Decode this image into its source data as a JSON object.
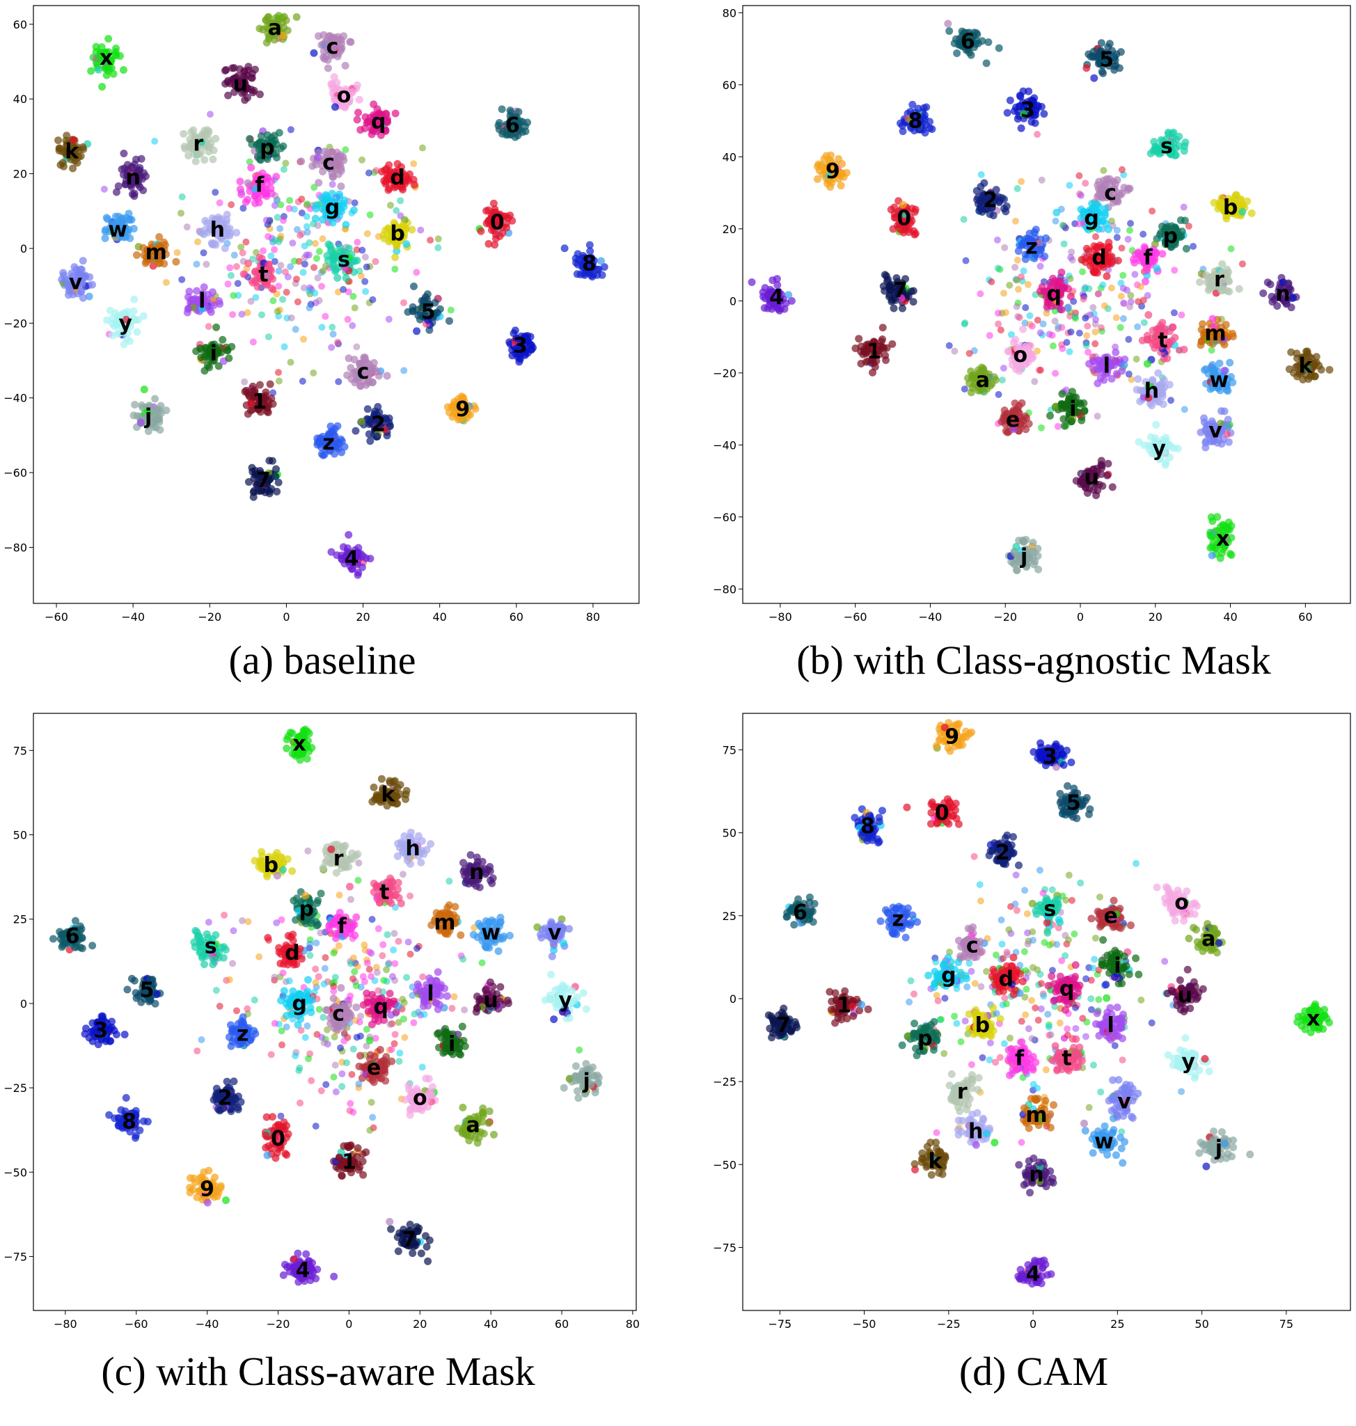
{
  "palette": {
    "0": "#e3122b",
    "1": "#7a0f22",
    "2": "#0f1f7a",
    "3": "#0a12c8",
    "4": "#6a1bd6",
    "5": "#0b4a6a",
    "6": "#0d5a6a",
    "7": "#0a1450",
    "8": "#1224d0",
    "9": "#f5a21a",
    "a": "#72a51c",
    "b": "#d8d20a",
    "c": "#b080b8",
    "d": "#e8122c",
    "e": "#b42f3a",
    "f": "#ff3ae6",
    "g": "#12d0f2",
    "h": "#a8a8f0",
    "i": "#0e6b12",
    "j": "#8aa8a2",
    "k": "#6b4a0a",
    "l": "#a24af0",
    "m": "#cc6a0a",
    "n": "#4a1a7a",
    "o": "#f5a8e2",
    "p": "#0b6e55",
    "q": "#e0128a",
    "r": "#b4c6b0",
    "s": "#1ad0a8",
    "t": "#f54a88",
    "u": "#5a0a4a",
    "v": "#7a82f2",
    "w": "#3a9af0",
    "x": "#12e012",
    "y": "#a8f2f2",
    "z": "#2a5af0"
  },
  "chart_data": [
    {
      "type": "scatter",
      "caption": "(a) baseline",
      "xlim": [
        -66,
        92
      ],
      "ylim": [
        -95,
        65
      ],
      "xticks": [
        -60,
        -40,
        -20,
        0,
        20,
        40,
        60,
        80
      ],
      "yticks": [
        60,
        40,
        20,
        0,
        -20,
        -40,
        -60,
        -80
      ],
      "xtick_labels": [
        "−60",
        "−40",
        "−20",
        "0",
        "20",
        "40",
        "60",
        "80"
      ],
      "ytick_labels": [
        "60",
        "40",
        "20",
        "0",
        "−20",
        "−40",
        "−60",
        "−80"
      ],
      "clusters": [
        {
          "label": "a",
          "x": -3,
          "y": 59
        },
        {
          "label": "c",
          "x": 12,
          "y": 54
        },
        {
          "label": "x",
          "x": -47,
          "y": 51
        },
        {
          "label": "u",
          "x": -12,
          "y": 44
        },
        {
          "label": "o",
          "x": 15,
          "y": 41
        },
        {
          "label": "q",
          "x": 24,
          "y": 34
        },
        {
          "label": "6",
          "x": 59,
          "y": 33
        },
        {
          "label": "r",
          "x": -23,
          "y": 28
        },
        {
          "label": "p",
          "x": -5,
          "y": 27
        },
        {
          "label": "k",
          "x": -56,
          "y": 26
        },
        {
          "label": "c",
          "x": 11,
          "y": 23
        },
        {
          "label": "d",
          "x": 29,
          "y": 19
        },
        {
          "label": "n",
          "x": -40,
          "y": 19
        },
        {
          "label": "f",
          "x": -7,
          "y": 17
        },
        {
          "label": "g",
          "x": 12,
          "y": 11
        },
        {
          "label": "0",
          "x": 55,
          "y": 7
        },
        {
          "label": "w",
          "x": -44,
          "y": 5
        },
        {
          "label": "h",
          "x": -18,
          "y": 5
        },
        {
          "label": "b",
          "x": 29,
          "y": 4
        },
        {
          "label": "m",
          "x": -34,
          "y": -1
        },
        {
          "label": "s",
          "x": 15,
          "y": -3
        },
        {
          "label": "8",
          "x": 79,
          "y": -4
        },
        {
          "label": "t",
          "x": -6,
          "y": -7
        },
        {
          "label": "v",
          "x": -55,
          "y": -9
        },
        {
          "label": "l",
          "x": -22,
          "y": -14
        },
        {
          "label": "5",
          "x": 37,
          "y": -17
        },
        {
          "label": "y",
          "x": -42,
          "y": -20
        },
        {
          "label": "3",
          "x": 61,
          "y": -26
        },
        {
          "label": "i",
          "x": -19,
          "y": -28
        },
        {
          "label": "c",
          "x": 20,
          "y": -33
        },
        {
          "label": "9",
          "x": 46,
          "y": -43
        },
        {
          "label": "1",
          "x": -7,
          "y": -41
        },
        {
          "label": "j",
          "x": -36,
          "y": -45
        },
        {
          "label": "2",
          "x": 24,
          "y": -47
        },
        {
          "label": "z",
          "x": 11,
          "y": -52
        },
        {
          "label": "7",
          "x": -6,
          "y": -62
        },
        {
          "label": "4",
          "x": 17,
          "y": -83
        }
      ]
    },
    {
      "type": "scatter",
      "caption": "(b) with Class-agnostic Mask",
      "xlim": [
        -90,
        72
      ],
      "ylim": [
        -84,
        82
      ],
      "xticks": [
        -80,
        -60,
        -40,
        -20,
        0,
        20,
        40,
        60
      ],
      "yticks": [
        80,
        60,
        40,
        20,
        0,
        -20,
        -40,
        -60,
        -80
      ],
      "xtick_labels": [
        "−80",
        "−60",
        "−40",
        "−20",
        "0",
        "20",
        "40",
        "60"
      ],
      "ytick_labels": [
        "80",
        "60",
        "40",
        "20",
        "0",
        "−20",
        "−40",
        "−60",
        "−80"
      ],
      "clusters": [
        {
          "label": "6",
          "x": -30,
          "y": 72
        },
        {
          "label": "5",
          "x": 7,
          "y": 67
        },
        {
          "label": "3",
          "x": -14,
          "y": 53
        },
        {
          "label": "8",
          "x": -44,
          "y": 50
        },
        {
          "label": "s",
          "x": 23,
          "y": 43
        },
        {
          "label": "9",
          "x": -66,
          "y": 36
        },
        {
          "label": "c",
          "x": 8,
          "y": 30
        },
        {
          "label": "b",
          "x": 40,
          "y": 26
        },
        {
          "label": "2",
          "x": -24,
          "y": 28
        },
        {
          "label": "g",
          "x": 3,
          "y": 23
        },
        {
          "label": "0",
          "x": -47,
          "y": 23
        },
        {
          "label": "p",
          "x": 24,
          "y": 18
        },
        {
          "label": "z",
          "x": -13,
          "y": 15
        },
        {
          "label": "d",
          "x": 5,
          "y": 12
        },
        {
          "label": "f",
          "x": 18,
          "y": 12
        },
        {
          "label": "r",
          "x": 37,
          "y": 6
        },
        {
          "label": "7",
          "x": -48,
          "y": 3
        },
        {
          "label": "4",
          "x": -81,
          "y": 1
        },
        {
          "label": "n",
          "x": 54,
          "y": 2
        },
        {
          "label": "q",
          "x": -7,
          "y": 2
        },
        {
          "label": "m",
          "x": 36,
          "y": -9
        },
        {
          "label": "t",
          "x": 22,
          "y": -11
        },
        {
          "label": "1",
          "x": -55,
          "y": -14
        },
        {
          "label": "o",
          "x": -16,
          "y": -15
        },
        {
          "label": "l",
          "x": 7,
          "y": -18
        },
        {
          "label": "k",
          "x": 60,
          "y": -18
        },
        {
          "label": "a",
          "x": -26,
          "y": -22
        },
        {
          "label": "w",
          "x": 37,
          "y": -22
        },
        {
          "label": "h",
          "x": 19,
          "y": -25
        },
        {
          "label": "i",
          "x": -2,
          "y": -30
        },
        {
          "label": "e",
          "x": -18,
          "y": -33
        },
        {
          "label": "v",
          "x": 36,
          "y": -36
        },
        {
          "label": "y",
          "x": 21,
          "y": -41
        },
        {
          "label": "u",
          "x": 3,
          "y": -49
        },
        {
          "label": "x",
          "x": 38,
          "y": -66
        },
        {
          "label": "j",
          "x": -15,
          "y": -71
        }
      ]
    },
    {
      "type": "scatter",
      "caption": "(c) with Class-aware Mask",
      "xlim": [
        -89,
        81
      ],
      "ylim": [
        -91,
        86
      ],
      "xticks": [
        -80,
        -60,
        -40,
        -20,
        0,
        20,
        40,
        60,
        80
      ],
      "yticks": [
        75,
        50,
        25,
        0,
        -25,
        -50,
        -75
      ],
      "xtick_labels": [
        "−80",
        "−60",
        "−40",
        "−20",
        "0",
        "20",
        "40",
        "60",
        "80"
      ],
      "ytick_labels": [
        "75",
        "50",
        "25",
        "0",
        "−25",
        "−50",
        "−75"
      ],
      "clusters": [
        {
          "label": "x",
          "x": -14,
          "y": 77
        },
        {
          "label": "k",
          "x": 11,
          "y": 62
        },
        {
          "label": "h",
          "x": 18,
          "y": 46
        },
        {
          "label": "r",
          "x": -3,
          "y": 43
        },
        {
          "label": "b",
          "x": -22,
          "y": 41
        },
        {
          "label": "n",
          "x": 36,
          "y": 39
        },
        {
          "label": "t",
          "x": 10,
          "y": 33
        },
        {
          "label": "p",
          "x": -12,
          "y": 28
        },
        {
          "label": "m",
          "x": 27,
          "y": 24
        },
        {
          "label": "f",
          "x": -2,
          "y": 23
        },
        {
          "label": "w",
          "x": 40,
          "y": 21
        },
        {
          "label": "v",
          "x": 58,
          "y": 21
        },
        {
          "label": "6",
          "x": -78,
          "y": 20
        },
        {
          "label": "s",
          "x": -39,
          "y": 17
        },
        {
          "label": "d",
          "x": -16,
          "y": 15
        },
        {
          "label": "5",
          "x": -57,
          "y": 4
        },
        {
          "label": "l",
          "x": 23,
          "y": 3
        },
        {
          "label": "u",
          "x": 40,
          "y": 1
        },
        {
          "label": "y",
          "x": 61,
          "y": 1
        },
        {
          "label": "g",
          "x": -14,
          "y": 0
        },
        {
          "label": "c",
          "x": -3,
          "y": -3
        },
        {
          "label": "q",
          "x": 9,
          "y": -1
        },
        {
          "label": "3",
          "x": -70,
          "y": -8
        },
        {
          "label": "z",
          "x": -30,
          "y": -9
        },
        {
          "label": "i",
          "x": 29,
          "y": -12
        },
        {
          "label": "e",
          "x": 7,
          "y": -19
        },
        {
          "label": "j",
          "x": 67,
          "y": -23
        },
        {
          "label": "2",
          "x": -35,
          "y": -28
        },
        {
          "label": "o",
          "x": 20,
          "y": -28
        },
        {
          "label": "8",
          "x": -62,
          "y": -35
        },
        {
          "label": "a",
          "x": 35,
          "y": -36
        },
        {
          "label": "0",
          "x": -20,
          "y": -40
        },
        {
          "label": "1",
          "x": 0,
          "y": -47
        },
        {
          "label": "9",
          "x": -40,
          "y": -55
        },
        {
          "label": "7",
          "x": 17,
          "y": -70
        },
        {
          "label": "4",
          "x": -13,
          "y": -79
        }
      ]
    },
    {
      "type": "scatter",
      "caption": "(d) CAM",
      "xlim": [
        -86,
        94
      ],
      "ylim": [
        -94,
        86
      ],
      "xticks": [
        -75,
        -50,
        -25,
        0,
        25,
        50,
        75
      ],
      "yticks": [
        75,
        50,
        25,
        0,
        -25,
        -50,
        -75
      ],
      "xtick_labels": [
        "−75",
        "−50",
        "−25",
        "0",
        "25",
        "50",
        "75"
      ],
      "ytick_labels": [
        "75",
        "50",
        "25",
        "0",
        "−25",
        "−50",
        "−75"
      ],
      "clusters": [
        {
          "label": "9",
          "x": -24,
          "y": 79
        },
        {
          "label": "3",
          "x": 5,
          "y": 73
        },
        {
          "label": "5",
          "x": 12,
          "y": 59
        },
        {
          "label": "0",
          "x": -27,
          "y": 56
        },
        {
          "label": "8",
          "x": -49,
          "y": 52
        },
        {
          "label": "2",
          "x": -9,
          "y": 44
        },
        {
          "label": "6",
          "x": -69,
          "y": 26
        },
        {
          "label": "z",
          "x": -40,
          "y": 24
        },
        {
          "label": "s",
          "x": 5,
          "y": 27
        },
        {
          "label": "e",
          "x": 23,
          "y": 25
        },
        {
          "label": "o",
          "x": 44,
          "y": 29
        },
        {
          "label": "c",
          "x": -18,
          "y": 16
        },
        {
          "label": "a",
          "x": 52,
          "y": 18
        },
        {
          "label": "d",
          "x": -8,
          "y": 6
        },
        {
          "label": "g",
          "x": -25,
          "y": 7
        },
        {
          "label": "i",
          "x": 25,
          "y": 10
        },
        {
          "label": "q",
          "x": 10,
          "y": 3
        },
        {
          "label": "u",
          "x": 45,
          "y": 1
        },
        {
          "label": "1",
          "x": -56,
          "y": -2
        },
        {
          "label": "x",
          "x": 83,
          "y": -6
        },
        {
          "label": "7",
          "x": -74,
          "y": -8
        },
        {
          "label": "b",
          "x": -15,
          "y": -8
        },
        {
          "label": "l",
          "x": 23,
          "y": -8
        },
        {
          "label": "p",
          "x": -32,
          "y": -12
        },
        {
          "label": "f",
          "x": -4,
          "y": -18
        },
        {
          "label": "t",
          "x": 10,
          "y": -18
        },
        {
          "label": "y",
          "x": 46,
          "y": -19
        },
        {
          "label": "r",
          "x": -21,
          "y": -28
        },
        {
          "label": "v",
          "x": 27,
          "y": -31
        },
        {
          "label": "m",
          "x": 1,
          "y": -35
        },
        {
          "label": "h",
          "x": -17,
          "y": -40
        },
        {
          "label": "w",
          "x": 21,
          "y": -43
        },
        {
          "label": "j",
          "x": 55,
          "y": -45
        },
        {
          "label": "k",
          "x": -29,
          "y": -49
        },
        {
          "label": "n",
          "x": 1,
          "y": -53
        },
        {
          "label": "4",
          "x": 0,
          "y": -83
        }
      ]
    }
  ]
}
